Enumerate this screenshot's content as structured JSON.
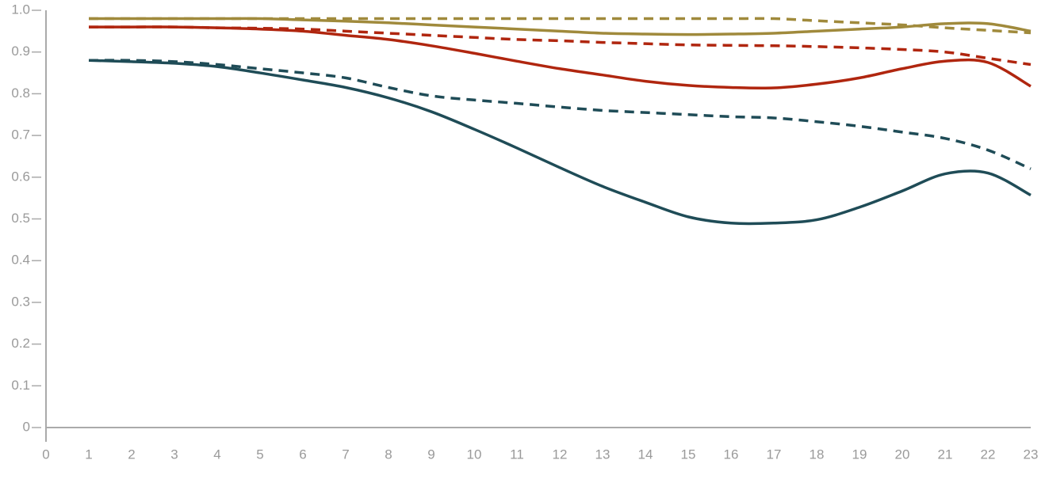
{
  "chart_data": {
    "type": "line",
    "x": [
      1,
      2,
      3,
      4,
      5,
      6,
      7,
      8,
      9,
      10,
      11,
      12,
      13,
      14,
      15,
      16,
      17,
      18,
      19,
      20,
      21,
      22,
      23
    ],
    "series": [
      {
        "color": "#a08a3c",
        "dash": false,
        "values": [
          0.98,
          0.98,
          0.98,
          0.98,
          0.98,
          0.977,
          0.974,
          0.97,
          0.965,
          0.96,
          0.955,
          0.95,
          0.945,
          0.943,
          0.942,
          0.943,
          0.945,
          0.95,
          0.955,
          0.96,
          0.968,
          0.968,
          0.95
        ]
      },
      {
        "color": "#a08a3c",
        "dash": true,
        "values": [
          0.98,
          0.98,
          0.98,
          0.98,
          0.98,
          0.98,
          0.98,
          0.98,
          0.98,
          0.98,
          0.98,
          0.98,
          0.98,
          0.98,
          0.98,
          0.98,
          0.98,
          0.975,
          0.97,
          0.965,
          0.958,
          0.952,
          0.946
        ]
      },
      {
        "color": "#b0260f",
        "dash": false,
        "values": [
          0.96,
          0.96,
          0.96,
          0.958,
          0.955,
          0.95,
          0.94,
          0.93,
          0.915,
          0.897,
          0.878,
          0.86,
          0.845,
          0.83,
          0.82,
          0.815,
          0.814,
          0.823,
          0.838,
          0.86,
          0.878,
          0.875,
          0.818
        ]
      },
      {
        "color": "#b0260f",
        "dash": true,
        "values": [
          0.96,
          0.96,
          0.96,
          0.958,
          0.957,
          0.955,
          0.95,
          0.945,
          0.94,
          0.935,
          0.93,
          0.927,
          0.923,
          0.92,
          0.917,
          0.916,
          0.915,
          0.913,
          0.91,
          0.906,
          0.9,
          0.885,
          0.87
        ]
      },
      {
        "color": "#1f4c57",
        "dash": false,
        "values": [
          0.88,
          0.877,
          0.873,
          0.865,
          0.85,
          0.833,
          0.815,
          0.79,
          0.757,
          0.715,
          0.67,
          0.623,
          0.578,
          0.54,
          0.505,
          0.49,
          0.49,
          0.498,
          0.528,
          0.567,
          0.608,
          0.61,
          0.557
        ]
      },
      {
        "color": "#1f4c57",
        "dash": true,
        "values": [
          0.88,
          0.88,
          0.877,
          0.87,
          0.86,
          0.85,
          0.838,
          0.815,
          0.795,
          0.785,
          0.777,
          0.768,
          0.76,
          0.755,
          0.75,
          0.745,
          0.742,
          0.733,
          0.722,
          0.708,
          0.693,
          0.665,
          0.62
        ]
      }
    ],
    "xlim": [
      0,
      23
    ],
    "xticks": [
      0,
      1,
      2,
      3,
      4,
      5,
      6,
      7,
      8,
      9,
      10,
      11,
      12,
      13,
      14,
      15,
      16,
      17,
      18,
      19,
      20,
      21,
      22,
      23
    ],
    "ylim": [
      0,
      1
    ],
    "yticks": [
      0,
      0.1,
      0.2,
      0.3,
      0.4,
      0.5,
      0.6,
      0.7,
      0.8,
      0.9,
      {
        "value": 1,
        "label": "1.0"
      }
    ]
  }
}
